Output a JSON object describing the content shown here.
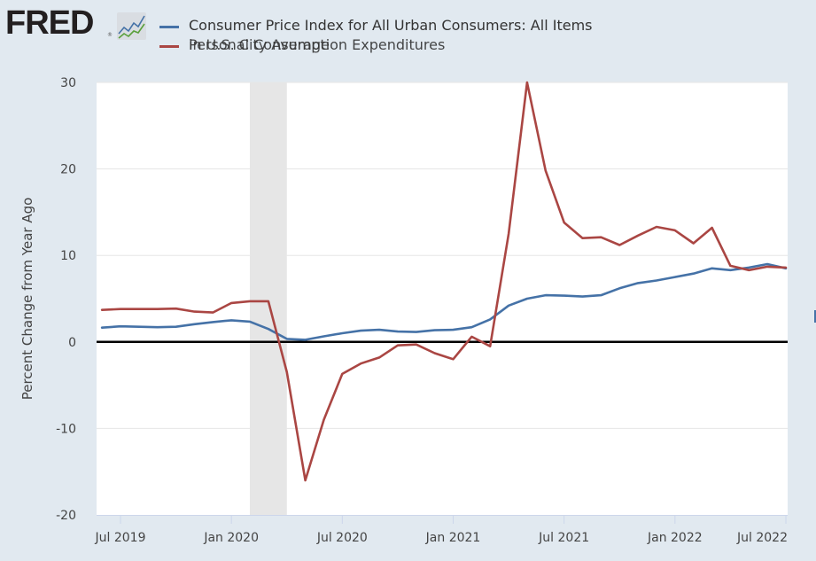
{
  "header": {
    "logo_text": "FRED",
    "logo_reg": "®",
    "logo_icon": "line-chart-icon"
  },
  "legend": [
    {
      "label": "Consumer Price Index for All Urban Consumers: All Items",
      "color": "#4572a7"
    },
    {
      "label": "Personal Consumption Expenditures",
      "overlap_label": "in U.S. City Average",
      "color": "#aa4643"
    }
  ],
  "colors": {
    "background": "#e1e9f0",
    "plot_background": "#ffffff",
    "gridline": "#e6e6e6",
    "recession_shade": "#e6e6e6",
    "zero_line": "#000000",
    "axis_line": "#ccd6eb"
  },
  "chart_data": {
    "type": "line",
    "title": "",
    "xlabel": "",
    "ylabel": "Percent Change from Year Ago",
    "ylim": [
      -20,
      30
    ],
    "yticks": [
      -20,
      -10,
      0,
      10,
      20,
      30
    ],
    "xticks": [
      {
        "label": "Jul 2019",
        "date": "2019-07"
      },
      {
        "label": "Jan 2020",
        "date": "2020-01"
      },
      {
        "label": "Jul 2020",
        "date": "2020-07"
      },
      {
        "label": "Jan 2021",
        "date": "2021-01"
      },
      {
        "label": "Jul 2021",
        "date": "2021-07"
      },
      {
        "label": "Jan 2022",
        "date": "2022-01"
      },
      {
        "label": "Jul 2022",
        "date": "2022-07"
      }
    ],
    "xrange": [
      "2019-06",
      "2022-07"
    ],
    "grid": true,
    "legend_position": "top",
    "recessions": [
      {
        "start": "2020-02",
        "end": "2020-04"
      }
    ],
    "x": [
      "2019-06",
      "2019-07",
      "2019-08",
      "2019-09",
      "2019-10",
      "2019-11",
      "2019-12",
      "2020-01",
      "2020-02",
      "2020-03",
      "2020-04",
      "2020-05",
      "2020-06",
      "2020-07",
      "2020-08",
      "2020-09",
      "2020-10",
      "2020-11",
      "2020-12",
      "2021-01",
      "2021-02",
      "2021-03",
      "2021-04",
      "2021-05",
      "2021-06",
      "2021-07",
      "2021-08",
      "2021-09",
      "2021-10",
      "2021-11",
      "2021-12",
      "2022-01",
      "2022-02",
      "2022-03",
      "2022-04",
      "2022-05",
      "2022-06",
      "2022-07"
    ],
    "series": [
      {
        "name": "Consumer Price Index for All Urban Consumers: All Items",
        "color": "#4572a7",
        "values": [
          1.65,
          1.8,
          1.75,
          1.7,
          1.75,
          2.05,
          2.3,
          2.5,
          2.35,
          1.5,
          0.35,
          0.25,
          0.65,
          1.0,
          1.3,
          1.4,
          1.2,
          1.15,
          1.35,
          1.4,
          1.7,
          2.6,
          4.2,
          5.0,
          5.4,
          5.35,
          5.25,
          5.4,
          6.2,
          6.8,
          7.1,
          7.5,
          7.9,
          8.5,
          8.3,
          8.6,
          9.0,
          8.5
        ]
      },
      {
        "name": "Personal Consumption Expenditures",
        "color": "#aa4643",
        "values": [
          3.7,
          3.8,
          3.8,
          3.8,
          3.85,
          3.5,
          3.4,
          4.5,
          4.7,
          4.7,
          -3.5,
          -16.0,
          -9.0,
          -3.7,
          -2.5,
          -1.8,
          -0.4,
          -0.3,
          -1.3,
          -2.0,
          0.6,
          -0.5,
          12.5,
          30.0,
          19.8,
          13.8,
          12.0,
          12.1,
          11.2,
          12.3,
          13.3,
          12.9,
          11.4,
          13.2,
          8.8,
          8.3,
          8.7,
          8.6
        ]
      }
    ]
  }
}
